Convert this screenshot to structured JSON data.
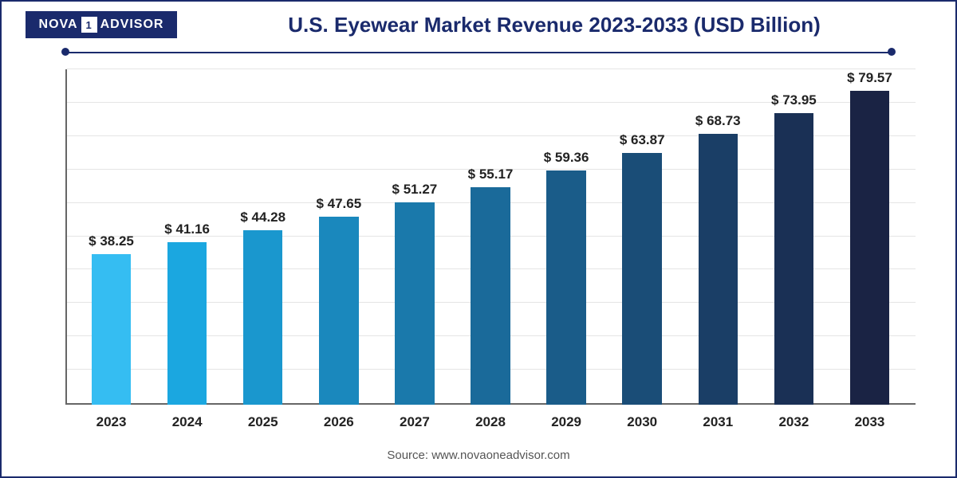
{
  "logo": {
    "text_left": "NOVA",
    "text_badge": "1",
    "text_right": "ADVISOR"
  },
  "title": "U.S. Eyewear Market Revenue 2023-2033 (USD Billion)",
  "source": "Source: www.novaoneadvisor.com",
  "chart": {
    "type": "bar",
    "categories": [
      "2023",
      "2024",
      "2025",
      "2026",
      "2027",
      "2028",
      "2029",
      "2030",
      "2031",
      "2032",
      "2033"
    ],
    "values": [
      38.25,
      41.16,
      44.28,
      47.65,
      51.27,
      55.17,
      59.36,
      63.87,
      68.73,
      73.95,
      79.57
    ],
    "value_prefix": "$ ",
    "bar_colors": [
      "#35bdf2",
      "#1ba7e0",
      "#1a97ce",
      "#1a88bd",
      "#1a79ab",
      "#1a6a9a",
      "#1a5c89",
      "#1a4d77",
      "#1a3e66",
      "#1a3055",
      "#1a2344"
    ],
    "ylim": [
      0,
      85
    ],
    "gridline_count": 10,
    "grid_color": "#e5e5e5",
    "axis_color": "#666666",
    "background_color": "#ffffff",
    "border_color": "#1a2a6c",
    "title_color": "#1a2a6c",
    "title_fontsize": 26,
    "label_fontsize": 17,
    "value_fontsize": 17,
    "bar_width_pct": 52
  }
}
